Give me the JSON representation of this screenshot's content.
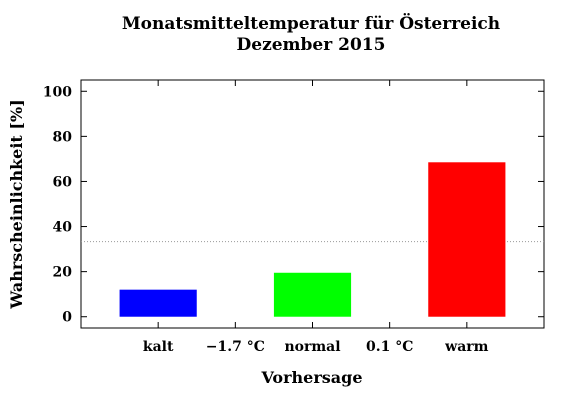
{
  "chart_data": {
    "type": "bar",
    "title": "Monatsmitteltemperatur für Österreich",
    "subtitle": "Dezember 2015",
    "xlabel": "Vorhersage",
    "ylabel": "Wahrscheinlichkeit [%]",
    "ylim": [
      -5,
      105
    ],
    "yticks": [
      0,
      20,
      40,
      60,
      80,
      100
    ],
    "grid": false,
    "categories": [
      "kalt",
      "normal",
      "warm"
    ],
    "values": [
      12,
      19.5,
      68.5
    ],
    "colors": [
      "#0000ff",
      "#00ff00",
      "#ff0000"
    ],
    "threshold_labels": [
      "−1.7 °C",
      "0.1 °C"
    ],
    "reference_line": {
      "value": 33.3,
      "style": "dotted",
      "color": "#999999"
    }
  }
}
